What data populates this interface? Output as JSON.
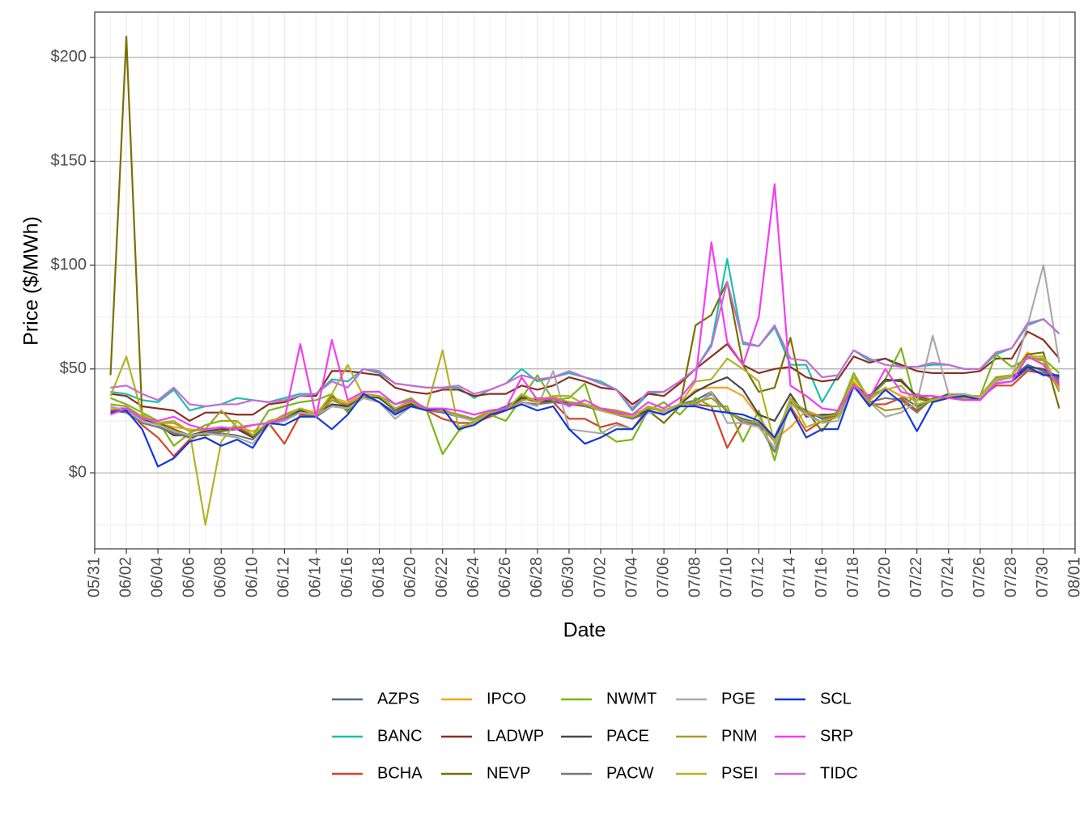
{
  "chart_data": {
    "type": "line",
    "x_label": "Date",
    "y_label": "Price ($/MWh)",
    "x": [
      "06/01",
      "06/02",
      "06/03",
      "06/04",
      "06/05",
      "06/06",
      "06/07",
      "06/08",
      "06/09",
      "06/10",
      "06/11",
      "06/12",
      "06/13",
      "06/14",
      "06/15",
      "06/16",
      "06/17",
      "06/18",
      "06/19",
      "06/20",
      "06/21",
      "06/22",
      "06/23",
      "06/24",
      "06/25",
      "06/26",
      "06/27",
      "06/28",
      "06/29",
      "06/30",
      "07/01",
      "07/02",
      "07/03",
      "07/04",
      "07/05",
      "07/06",
      "07/07",
      "07/08",
      "07/09",
      "07/10",
      "07/11",
      "07/12",
      "07/13",
      "07/14",
      "07/15",
      "07/16",
      "07/17",
      "07/18",
      "07/19",
      "07/20",
      "07/21",
      "07/22",
      "07/23",
      "07/24",
      "07/25",
      "07/26",
      "07/27",
      "07/28",
      "07/29",
      "07/30",
      "07/31"
    ],
    "xlim": [
      "05/31",
      "08/01"
    ],
    "xticks": [
      "05/31",
      "06/02",
      "06/04",
      "06/06",
      "06/08",
      "06/10",
      "06/12",
      "06/14",
      "06/16",
      "06/18",
      "06/20",
      "06/22",
      "06/24",
      "06/26",
      "06/28",
      "06/30",
      "07/02",
      "07/04",
      "07/06",
      "07/08",
      "07/10",
      "07/12",
      "07/14",
      "07/16",
      "07/18",
      "07/20",
      "07/22",
      "07/24",
      "07/26",
      "07/28",
      "07/30",
      "08/01"
    ],
    "ylim": [
      -36.6,
      221.8
    ],
    "yticks": [
      {
        "value": 0,
        "label": "$0"
      },
      {
        "value": 50,
        "label": "$50"
      },
      {
        "value": 100,
        "label": "$100"
      },
      {
        "value": 150,
        "label": "$150"
      },
      {
        "value": 200,
        "label": "$200"
      }
    ],
    "grid": true,
    "legend": "bottom",
    "series": [
      {
        "name": "AZPS",
        "color": "#4d6d8a",
        "values": [
          31,
          31,
          26,
          23,
          19,
          18,
          19,
          20,
          21,
          18,
          24,
          25,
          30,
          28,
          33,
          32,
          38,
          36,
          30,
          33,
          31,
          30,
          27,
          26,
          29,
          32,
          36,
          35,
          36,
          34,
          33,
          31,
          30,
          28,
          31,
          30,
          33,
          35,
          39,
          29,
          26,
          24,
          17,
          34,
          30,
          26,
          28,
          43,
          36,
          41,
          37,
          32,
          35,
          37,
          38,
          36,
          44,
          46,
          52,
          49,
          45
        ]
      },
      {
        "name": "BANC",
        "color": "#1dbfa8",
        "values": [
          39,
          38,
          35,
          34,
          40,
          30,
          32,
          33,
          36,
          35,
          34,
          36,
          38,
          38,
          45,
          44,
          50,
          48,
          43,
          42,
          41,
          41,
          41,
          36,
          40,
          43,
          50,
          44,
          46,
          48,
          46,
          44,
          40,
          30,
          38,
          39,
          44,
          50,
          62,
          103,
          62,
          61,
          70,
          52,
          52,
          34,
          47,
          59,
          54,
          55,
          51,
          51,
          52,
          52,
          50,
          50,
          57,
          60,
          71,
          74,
          67
        ]
      },
      {
        "name": "BCHA",
        "color": "#d4452a",
        "values": [
          29,
          31,
          23,
          17,
          8,
          16,
          20,
          21,
          22,
          18,
          24,
          14,
          28,
          27,
          35,
          32,
          37,
          34,
          29,
          33,
          30,
          26,
          24,
          24,
          27,
          30,
          36,
          34,
          34,
          26,
          26,
          22,
          24,
          21,
          31,
          30,
          32,
          33,
          32,
          12,
          25,
          23,
          16,
          32,
          20,
          25,
          28,
          42,
          33,
          33,
          36,
          30,
          36,
          36,
          35,
          36,
          42,
          42,
          49,
          48,
          43
        ]
      },
      {
        "name": "IPCO",
        "color": "#f5a31f",
        "values": [
          31,
          30,
          25,
          24,
          22,
          21,
          20,
          21,
          22,
          20,
          23,
          27,
          31,
          29,
          36,
          34,
          38,
          37,
          31,
          34,
          30,
          31,
          27,
          26,
          30,
          31,
          36,
          35,
          37,
          33,
          33,
          31,
          29,
          27,
          32,
          29,
          33,
          40,
          41,
          41,
          37,
          27,
          16,
          22,
          30,
          27,
          29,
          44,
          35,
          41,
          37,
          35,
          35,
          37,
          36,
          36,
          46,
          47,
          58,
          52,
          41
        ]
      },
      {
        "name": "LADWP",
        "color": "#8b2e22",
        "values": [
          38,
          37,
          32,
          31,
          30,
          25,
          29,
          29,
          28,
          28,
          33,
          34,
          37,
          37,
          49,
          49,
          48,
          47,
          41,
          39,
          38,
          40,
          40,
          37,
          38,
          38,
          42,
          40,
          42,
          46,
          44,
          41,
          40,
          33,
          38,
          37,
          43,
          50,
          56,
          62,
          52,
          48,
          50,
          51,
          46,
          44,
          45,
          56,
          53,
          55,
          52,
          49,
          48,
          48,
          48,
          49,
          55,
          55,
          68,
          64,
          55
        ]
      },
      {
        "name": "NEVP",
        "color": "#7a7000",
        "values": [
          47,
          210,
          27,
          24,
          21,
          18,
          18,
          20,
          22,
          17,
          24,
          27,
          30,
          28,
          37,
          30,
          38,
          36,
          31,
          33,
          31,
          30,
          27,
          26,
          29,
          30,
          37,
          35,
          35,
          34,
          33,
          31,
          30,
          28,
          30,
          24,
          32,
          71,
          76,
          92,
          52,
          39,
          41,
          65,
          30,
          20,
          30,
          46,
          36,
          44,
          45,
          36,
          34,
          37,
          37,
          37,
          46,
          47,
          57,
          58,
          31
        ]
      },
      {
        "name": "NWMT",
        "color": "#7cb518",
        "values": [
          36,
          33,
          29,
          25,
          13,
          19,
          23,
          25,
          25,
          18,
          30,
          32,
          34,
          35,
          38,
          29,
          38,
          37,
          33,
          36,
          30,
          9,
          20,
          25,
          28,
          25,
          36,
          47,
          35,
          36,
          43,
          20,
          15,
          16,
          30,
          34,
          28,
          36,
          32,
          32,
          15,
          30,
          6,
          35,
          29,
          27,
          29,
          48,
          35,
          45,
          60,
          31,
          35,
          36,
          36,
          37,
          57,
          51,
          55,
          55,
          48
        ]
      },
      {
        "name": "PACE",
        "color": "#484848",
        "values": [
          30,
          30,
          26,
          23,
          18,
          18,
          20,
          21,
          21,
          17,
          24,
          27,
          30,
          28,
          33,
          32,
          37,
          36,
          31,
          33,
          30,
          30,
          28,
          26,
          29,
          31,
          36,
          35,
          34,
          34,
          33,
          30,
          29,
          26,
          30,
          28,
          33,
          39,
          43,
          46,
          40,
          28,
          25,
          38,
          27,
          28,
          28,
          42,
          37,
          45,
          44,
          37,
          35,
          38,
          37,
          36,
          45,
          46,
          51,
          50,
          46
        ]
      },
      {
        "name": "PACW",
        "color": "#777777",
        "values": [
          30,
          29,
          24,
          22,
          19,
          17,
          19,
          19,
          18,
          16,
          24,
          26,
          29,
          27,
          32,
          31,
          36,
          34,
          29,
          32,
          30,
          29,
          27,
          25,
          28,
          30,
          34,
          33,
          34,
          33,
          32,
          30,
          28,
          26,
          29,
          29,
          32,
          33,
          38,
          30,
          24,
          23,
          10,
          33,
          29,
          24,
          27,
          42,
          34,
          36,
          35,
          29,
          36,
          37,
          37,
          35,
          43,
          44,
          50,
          48,
          44
        ]
      },
      {
        "name": "PGE",
        "color": "#aaaaaa",
        "values": [
          32,
          30,
          25,
          23,
          20,
          18,
          19,
          18,
          17,
          14,
          23,
          25,
          29,
          28,
          32,
          31,
          36,
          34,
          26,
          32,
          30,
          30,
          27,
          25,
          28,
          30,
          34,
          32,
          49,
          21,
          20,
          19,
          23,
          21,
          29,
          29,
          33,
          32,
          39,
          24,
          24,
          22,
          12,
          33,
          28,
          24,
          25,
          41,
          34,
          27,
          29,
          34,
          66,
          38,
          38,
          36,
          44,
          46,
          71,
          100,
          53
        ]
      },
      {
        "name": "PNM",
        "color": "#a89c2a",
        "values": [
          33,
          32,
          27,
          24,
          24,
          20,
          21,
          30,
          22,
          23,
          24,
          28,
          31,
          28,
          35,
          33,
          37,
          37,
          31,
          34,
          30,
          30,
          28,
          26,
          29,
          30,
          35,
          36,
          36,
          34,
          33,
          31,
          30,
          28,
          31,
          30,
          33,
          34,
          36,
          30,
          25,
          24,
          15,
          36,
          29,
          27,
          28,
          43,
          34,
          30,
          31,
          38,
          35,
          37,
          37,
          37,
          46,
          47,
          56,
          54,
          39
        ]
      },
      {
        "name": "PSEI",
        "color": "#b3b324",
        "values": [
          37,
          56,
          28,
          24,
          25,
          20,
          -25,
          15,
          25,
          18,
          25,
          27,
          31,
          28,
          38,
          52,
          37,
          37,
          31,
          35,
          31,
          59,
          22,
          24,
          29,
          30,
          38,
          34,
          37,
          37,
          33,
          30,
          28,
          27,
          32,
          30,
          33,
          44,
          45,
          55,
          50,
          44,
          14,
          36,
          22,
          25,
          27,
          46,
          36,
          40,
          42,
          33,
          35,
          37,
          37,
          37,
          45,
          47,
          56,
          56,
          40
        ]
      },
      {
        "name": "SCL",
        "color": "#1438d6",
        "values": [
          29,
          30,
          21,
          3,
          7,
          15,
          17,
          13,
          16,
          12,
          24,
          23,
          27,
          27,
          21,
          28,
          38,
          34,
          28,
          32,
          30,
          31,
          21,
          23,
          28,
          30,
          33,
          30,
          32,
          21,
          14,
          17,
          21,
          21,
          30,
          28,
          32,
          32,
          30,
          29,
          28,
          25,
          17,
          31,
          17,
          21,
          21,
          42,
          32,
          40,
          34,
          20,
          34,
          36,
          37,
          35,
          43,
          44,
          51,
          47,
          47
        ]
      },
      {
        "name": "SRP",
        "color": "#f23ef2",
        "values": [
          28,
          31,
          26,
          25,
          27,
          23,
          21,
          22,
          21,
          23,
          24,
          26,
          62,
          27,
          64,
          35,
          39,
          39,
          33,
          35,
          31,
          31,
          30,
          28,
          30,
          31,
          46,
          35,
          36,
          32,
          35,
          31,
          29,
          28,
          34,
          31,
          36,
          45,
          111,
          63,
          52,
          75,
          139,
          42,
          37,
          31,
          30,
          42,
          36,
          50,
          39,
          37,
          37,
          36,
          35,
          35,
          43,
          44,
          56,
          52,
          42
        ]
      },
      {
        "name": "TIDC",
        "color": "#c86bd6",
        "values": [
          41,
          42,
          38,
          35,
          41,
          33,
          32,
          33,
          33,
          35,
          34,
          35,
          37,
          38,
          44,
          41,
          50,
          49,
          43,
          42,
          41,
          41,
          42,
          38,
          40,
          43,
          47,
          45,
          46,
          49,
          46,
          43,
          40,
          31,
          39,
          39,
          44,
          50,
          61,
          92,
          63,
          61,
          71,
          55,
          54,
          46,
          47,
          59,
          55,
          52,
          51,
          51,
          53,
          52,
          50,
          50,
          58,
          60,
          72,
          74,
          67
        ]
      }
    ]
  }
}
